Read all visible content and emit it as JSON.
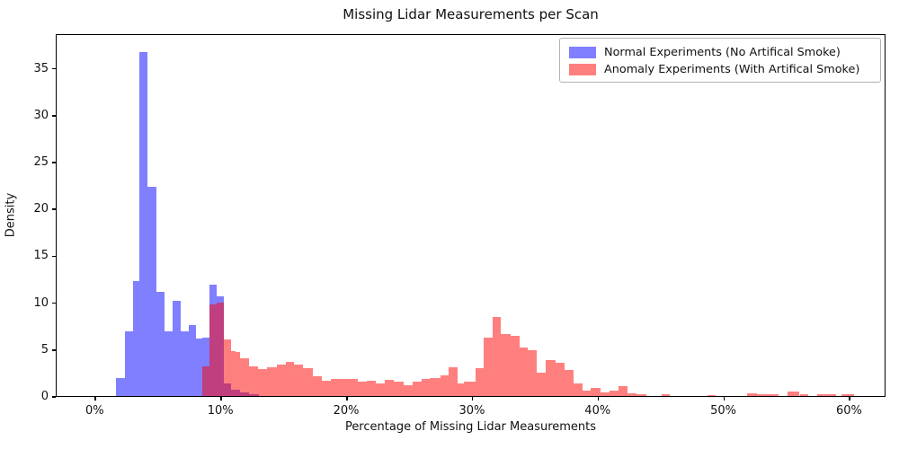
{
  "chart_data": {
    "type": "histogram",
    "title": "Missing Lidar Measurements per Scan",
    "xlabel": "Percentage of Missing Lidar Measurements",
    "ylabel": "Density",
    "xlim": [
      -3.1,
      62.9
    ],
    "ylim": [
      0,
      38.7
    ],
    "grid": false,
    "legend_position": "upper right",
    "x_ticks": [
      {
        "value": 0,
        "label": "0%"
      },
      {
        "value": 10,
        "label": "10%"
      },
      {
        "value": 20,
        "label": "20%"
      },
      {
        "value": 30,
        "label": "30%"
      },
      {
        "value": 40,
        "label": "40%"
      },
      {
        "value": 50,
        "label": "50%"
      },
      {
        "value": 60,
        "label": "60%"
      }
    ],
    "y_ticks": [
      {
        "value": 0,
        "label": "0"
      },
      {
        "value": 5,
        "label": "5"
      },
      {
        "value": 10,
        "label": "10"
      },
      {
        "value": 15,
        "label": "15"
      },
      {
        "value": 20,
        "label": "20"
      },
      {
        "value": 25,
        "label": "25"
      },
      {
        "value": 30,
        "label": "30"
      },
      {
        "value": 35,
        "label": "35"
      }
    ],
    "series": [
      {
        "name": "Normal Experiments (No Artifical Smoke)",
        "color": "rgba(0,0,255,0.5)",
        "bars_format": "[x_start_percent, x_end_percent, density]",
        "bars": [
          [
            1.6,
            2.3,
            1.9
          ],
          [
            2.3,
            3.0,
            6.9
          ],
          [
            3.0,
            3.45,
            12.3
          ],
          [
            3.45,
            4.15,
            36.7
          ],
          [
            4.15,
            4.85,
            22.3
          ],
          [
            4.85,
            5.45,
            11.1
          ],
          [
            5.45,
            6.15,
            6.9
          ],
          [
            6.15,
            6.75,
            10.2
          ],
          [
            6.75,
            7.4,
            6.9
          ],
          [
            7.4,
            7.95,
            7.6
          ],
          [
            7.95,
            8.5,
            6.1
          ],
          [
            8.5,
            9.05,
            6.2
          ],
          [
            9.05,
            9.6,
            11.9
          ],
          [
            9.6,
            10.2,
            10.6
          ],
          [
            10.2,
            10.75,
            1.3
          ],
          [
            10.75,
            11.5,
            0.7
          ],
          [
            11.5,
            12.2,
            0.4
          ],
          [
            12.2,
            13.0,
            0.2
          ]
        ]
      },
      {
        "name": "Anomaly Experiments (With Artifical Smoke)",
        "color": "rgba(255,0,0,0.5)",
        "bars_format": "[x_start_percent, x_end_percent, density]",
        "bars": [
          [
            8.5,
            9.05,
            3.2
          ],
          [
            9.05,
            9.6,
            9.8
          ],
          [
            9.6,
            10.2,
            10.0
          ],
          [
            10.2,
            10.75,
            6.0
          ],
          [
            10.75,
            11.1,
            4.8
          ],
          [
            11.1,
            11.5,
            4.7
          ],
          [
            11.5,
            12.2,
            4.0
          ],
          [
            12.2,
            12.9,
            3.2
          ],
          [
            12.9,
            13.65,
            2.9
          ],
          [
            13.65,
            14.4,
            3.1
          ],
          [
            14.4,
            15.1,
            3.4
          ],
          [
            15.1,
            15.8,
            3.65
          ],
          [
            15.8,
            16.5,
            3.4
          ],
          [
            16.5,
            17.25,
            3.0
          ],
          [
            17.25,
            18.0,
            2.1
          ],
          [
            18.0,
            18.7,
            1.6
          ],
          [
            18.7,
            19.4,
            1.85
          ],
          [
            19.4,
            20.1,
            1.8
          ],
          [
            20.1,
            20.85,
            1.85
          ],
          [
            20.85,
            21.6,
            1.55
          ],
          [
            21.6,
            22.3,
            1.6
          ],
          [
            22.3,
            23.0,
            1.3
          ],
          [
            23.0,
            23.75,
            1.75
          ],
          [
            23.75,
            24.5,
            1.5
          ],
          [
            24.5,
            25.2,
            1.15
          ],
          [
            25.2,
            25.9,
            1.5
          ],
          [
            25.9,
            26.6,
            1.8
          ],
          [
            26.6,
            27.4,
            1.9
          ],
          [
            27.4,
            28.1,
            2.2
          ],
          [
            28.1,
            28.8,
            3.1
          ],
          [
            28.8,
            29.3,
            1.3
          ],
          [
            29.3,
            30.2,
            1.5
          ],
          [
            30.2,
            30.9,
            3.0
          ],
          [
            30.9,
            31.6,
            6.2
          ],
          [
            31.6,
            32.25,
            8.4
          ],
          [
            32.25,
            33.0,
            6.6
          ],
          [
            33.0,
            33.7,
            6.45
          ],
          [
            33.7,
            34.4,
            5.15
          ],
          [
            34.4,
            35.1,
            4.85
          ],
          [
            35.1,
            35.8,
            2.45
          ],
          [
            35.8,
            36.6,
            3.85
          ],
          [
            36.6,
            37.3,
            3.55
          ],
          [
            37.3,
            38.0,
            2.75
          ],
          [
            38.0,
            38.7,
            1.3
          ],
          [
            38.7,
            39.4,
            0.6
          ],
          [
            39.4,
            40.15,
            0.85
          ],
          [
            40.15,
            40.9,
            0.4
          ],
          [
            40.9,
            41.6,
            0.6
          ],
          [
            41.6,
            42.3,
            1.05
          ],
          [
            42.3,
            43.0,
            0.3
          ],
          [
            43.0,
            43.8,
            0.15
          ],
          [
            45.0,
            45.7,
            0.2
          ],
          [
            48.7,
            49.3,
            0.1
          ],
          [
            51.8,
            52.6,
            0.25
          ],
          [
            52.6,
            54.3,
            0.2
          ],
          [
            55.0,
            56.0,
            0.45
          ],
          [
            56.0,
            56.7,
            0.2
          ],
          [
            57.4,
            58.9,
            0.2
          ],
          [
            59.3,
            60.3,
            0.2
          ]
        ]
      }
    ],
    "colors": {
      "normal_fill": "#8080FF",
      "anomaly_fill": "#FF8080",
      "overlap_fill": "#BF4080",
      "axis": "#000000",
      "legend_border": "#B3B3B3"
    }
  }
}
